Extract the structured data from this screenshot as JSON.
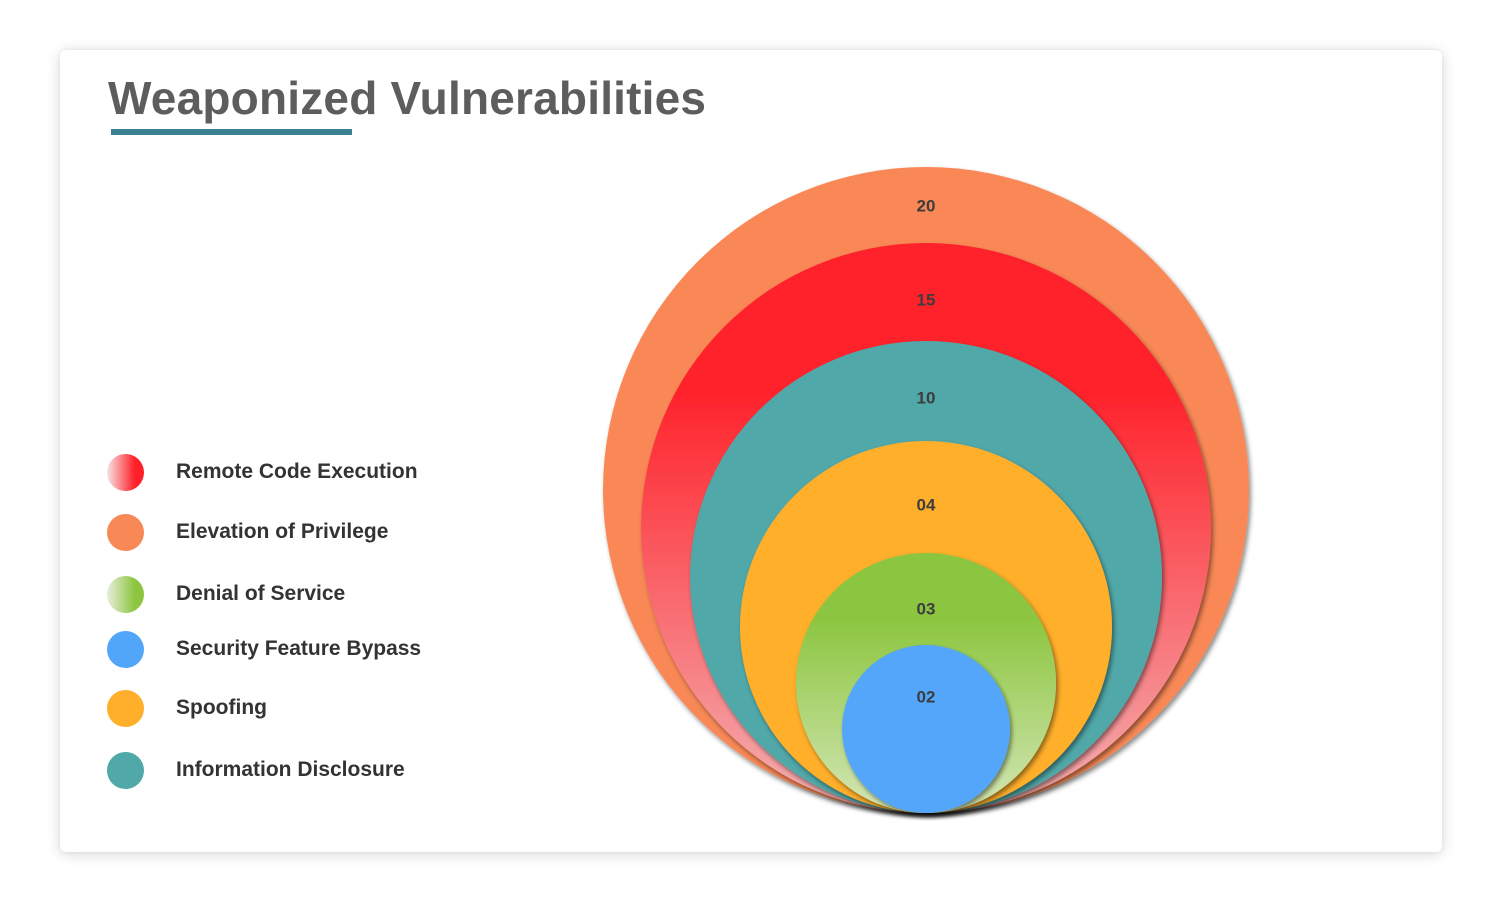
{
  "chart_data": {
    "type": "nested-circles",
    "title": "Weaponized Vulnerabilities",
    "series": [
      {
        "name": "Elevation of Privilege",
        "value_label": "20",
        "value": 20,
        "color": "#f98857"
      },
      {
        "name": "Remote Code Execution",
        "value_label": "15",
        "value": 15,
        "color": "#ff2029",
        "gradient_to": "#f3b2b4"
      },
      {
        "name": "Information Disclosure",
        "value_label": "10",
        "value": 10,
        "color": "#51a8a9"
      },
      {
        "name": "Spoofing",
        "value_label": "04",
        "value": 4,
        "color": "#ffaf2a"
      },
      {
        "name": "Denial of Service",
        "value_label": "03",
        "value": 3,
        "color": "#8cc63f",
        "gradient_to": "#d4e6b6"
      },
      {
        "name": "Security Feature Bypass",
        "value_label": "02",
        "value": 2,
        "color": "#52a6fa"
      }
    ],
    "legend": {
      "placement": "left",
      "items": [
        {
          "label": "Remote Code Execution",
          "color": "#ff2029",
          "gradient_from": "#f7e4e4"
        },
        {
          "label": "Elevation of Privilege",
          "color": "#f98857"
        },
        {
          "label": "Denial of Service",
          "color": "#8cc63f",
          "gradient_from": "#e7eedb"
        },
        {
          "label": "Security Feature Bypass",
          "color": "#52a6fa"
        },
        {
          "label": "Spoofing",
          "color": "#ffaf2a"
        },
        {
          "label": "Information Disclosure",
          "color": "#51a8a9"
        }
      ]
    }
  },
  "accent_color": "#3a8291"
}
